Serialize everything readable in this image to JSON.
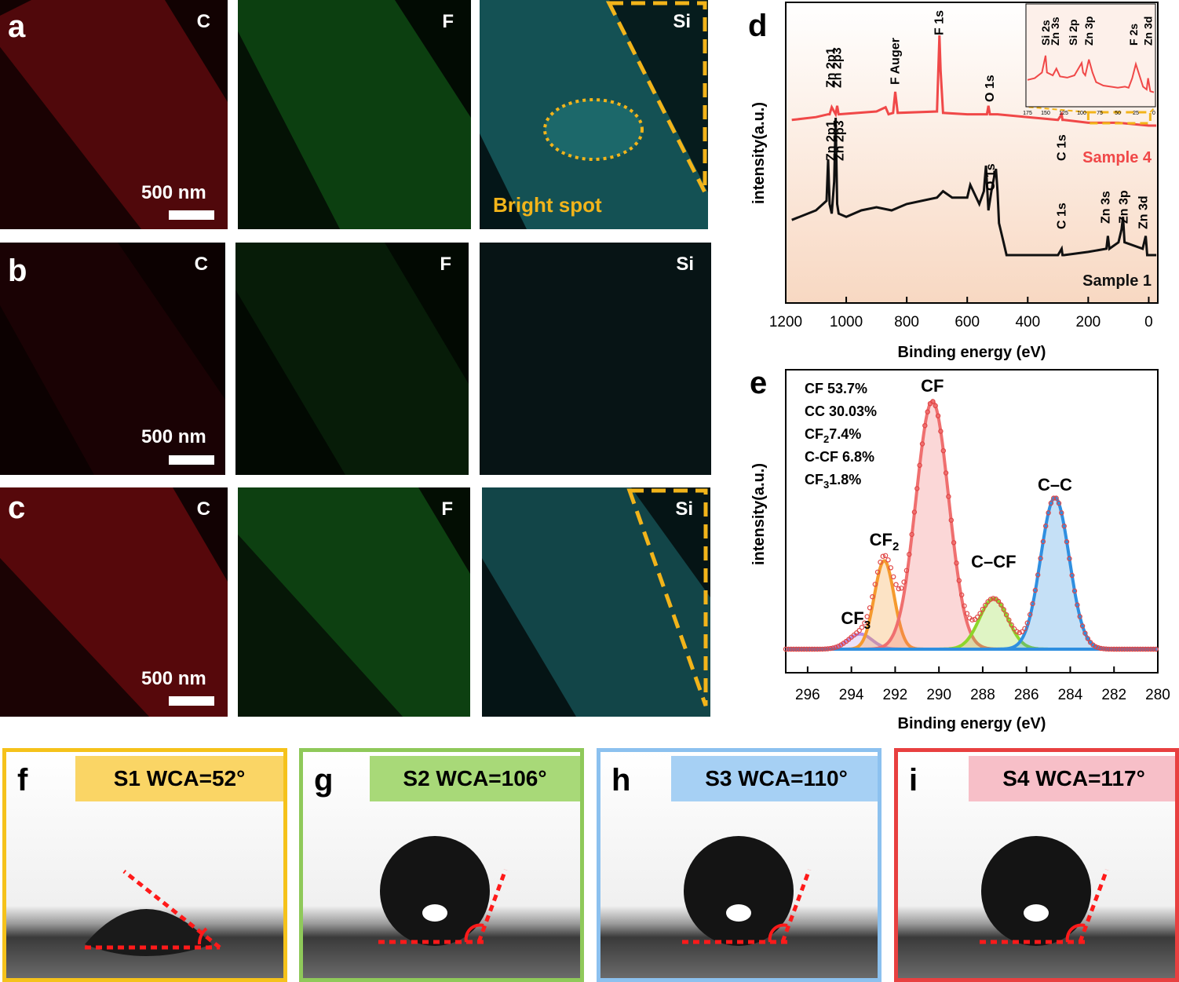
{
  "maps": {
    "rows": [
      {
        "letter": "a",
        "scale": "500 nm",
        "cells": [
          {
            "element": "C"
          },
          {
            "element": "F"
          },
          {
            "element": "Si",
            "annotation": "Bright spot"
          }
        ]
      },
      {
        "letter": "b",
        "scale": "500 nm",
        "cells": [
          {
            "element": "C"
          },
          {
            "element": "F"
          },
          {
            "element": "Si"
          }
        ]
      },
      {
        "letter": "c",
        "scale": "500 nm",
        "cells": [
          {
            "element": "C"
          },
          {
            "element": "F"
          },
          {
            "element": "Si"
          }
        ]
      }
    ]
  },
  "colors": {
    "carbon": "#c0141a",
    "fluorine": "#1e9a28",
    "silicon": "#22c8cf",
    "sample4": "#f04848",
    "sample1": "#111111",
    "highlight": "#f2b41a"
  },
  "chart_data": [
    {
      "panel": "d",
      "type": "line",
      "xlabel": "Binding energy (eV)",
      "ylabel": "intensity(a.u.)",
      "xlim": [
        1200,
        -30
      ],
      "xticks": [
        1200,
        1000,
        800,
        600,
        400,
        200,
        0
      ],
      "series": [
        {
          "name": "Sample 4",
          "x": [
            1180,
            1100,
            1060,
            1055,
            1048,
            1035,
            1030,
            1025,
            900,
            870,
            860,
            845,
            838,
            830,
            700,
            692,
            688,
            680,
            600,
            535,
            530,
            525,
            500,
            400,
            300,
            288,
            285,
            280,
            200,
            100,
            0,
            -25
          ],
          "y": [
            40,
            42,
            44,
            44,
            49,
            44,
            50,
            44,
            46,
            49,
            44,
            45,
            60,
            45,
            46,
            100,
            75,
            45,
            44,
            44,
            50,
            44,
            44,
            42,
            40,
            44,
            40,
            40,
            38,
            38,
            36,
            36
          ]
        },
        {
          "name": "Sample 1",
          "x": [
            1180,
            1100,
            1065,
            1060,
            1055,
            1048,
            1040,
            1035,
            1030,
            1025,
            1000,
            950,
            900,
            850,
            800,
            700,
            680,
            650,
            600,
            590,
            560,
            545,
            538,
            530,
            520,
            510,
            505,
            500,
            495,
            480,
            470,
            400,
            300,
            288,
            285,
            280,
            200,
            140,
            135,
            130,
            100,
            90,
            85,
            80,
            20,
            10,
            5,
            -25
          ],
          "y": [
            31,
            34,
            37,
            50,
            36,
            33,
            43,
            63,
            36,
            33,
            32,
            34,
            35,
            34,
            36,
            38,
            40,
            38,
            38,
            42,
            36,
            40,
            48,
            34,
            40,
            45,
            47,
            40,
            30,
            24,
            20,
            20,
            20,
            22,
            20,
            20,
            21,
            22,
            26,
            22,
            24,
            28,
            32,
            24,
            22,
            26,
            20,
            20
          ]
        }
      ],
      "annotations_sample4": [
        "Zn 2p1",
        "Zn 2p3",
        "F Auger",
        "F 1s",
        "O 1s",
        "C 1s"
      ],
      "annotations_sample1": [
        "Zn 2p1",
        "Zn 2p3",
        "O 1s",
        "C 1s",
        "Zn 3s",
        "Zn 3p",
        "Zn 3d"
      ],
      "inset": {
        "xticks": [
          175,
          150,
          125,
          100,
          75,
          50,
          25,
          0
        ],
        "labels": [
          "Si 2s",
          "Zn 3s",
          "Si 2p",
          "Zn 3p",
          "F 2s",
          "Zn 3d"
        ],
        "x": [
          175,
          165,
          155,
          150,
          148,
          140,
          135,
          130,
          120,
          110,
          100,
          98,
          95,
          90,
          85,
          80,
          70,
          60,
          50,
          40,
          35,
          30,
          25,
          15,
          10,
          8,
          5,
          0
        ],
        "y": [
          0.42,
          0.45,
          0.55,
          0.85,
          0.55,
          0.5,
          0.62,
          0.48,
          0.46,
          0.5,
          0.72,
          0.55,
          0.5,
          0.78,
          0.55,
          0.38,
          0.32,
          0.3,
          0.28,
          0.3,
          0.28,
          0.45,
          0.7,
          0.3,
          0.25,
          0.45,
          0.22,
          0.2
        ]
      }
    },
    {
      "panel": "e",
      "type": "area",
      "xlabel": "Binding energy (eV)",
      "ylabel": "intensity(a.u.)",
      "xlim": [
        297,
        280
      ],
      "xticks": [
        296,
        294,
        292,
        290,
        288,
        286,
        284,
        282,
        280
      ],
      "composition": [
        {
          "name": "CF",
          "value": "53.7%"
        },
        {
          "name": "CC",
          "value": "30.03%"
        },
        {
          "name": "CF2",
          "value": "7.4%"
        },
        {
          "name": "C-CF",
          "value": "6.8%"
        },
        {
          "name": "CF3",
          "value": "1.8%"
        }
      ],
      "peaks": [
        {
          "name": "CF3",
          "center": 293.6,
          "height": 0.06,
          "width": 0.55,
          "color": "#b58ee8"
        },
        {
          "name": "CF2",
          "center": 292.5,
          "height": 0.35,
          "width": 0.45,
          "color": "#f59a2e"
        },
        {
          "name": "CF",
          "center": 290.3,
          "height": 0.98,
          "width": 0.75,
          "color": "#ef6f6f"
        },
        {
          "name": "C–CF",
          "center": 287.5,
          "height": 0.2,
          "width": 0.65,
          "color": "#8dd62a"
        },
        {
          "name": "C–C",
          "center": 284.7,
          "height": 0.6,
          "width": 0.65,
          "color": "#2f8fe0"
        }
      ]
    }
  ],
  "wca": [
    {
      "letter": "f",
      "title": "S1 WCA=52°",
      "border": "#f5c21b",
      "title_bg": "#fad565",
      "angle": 52
    },
    {
      "letter": "g",
      "title": "S2 WCA=106°",
      "border": "#8fc95a",
      "title_bg": "#a8d978",
      "angle": 106
    },
    {
      "letter": "h",
      "title": "S3 WCA=110°",
      "border": "#8cc1ef",
      "title_bg": "#a6d0f4",
      "angle": 110
    },
    {
      "letter": "i",
      "title": "S4 WCA=117°",
      "border": "#e84040",
      "title_bg": "#f7bfc8",
      "angle": 117
    }
  ]
}
